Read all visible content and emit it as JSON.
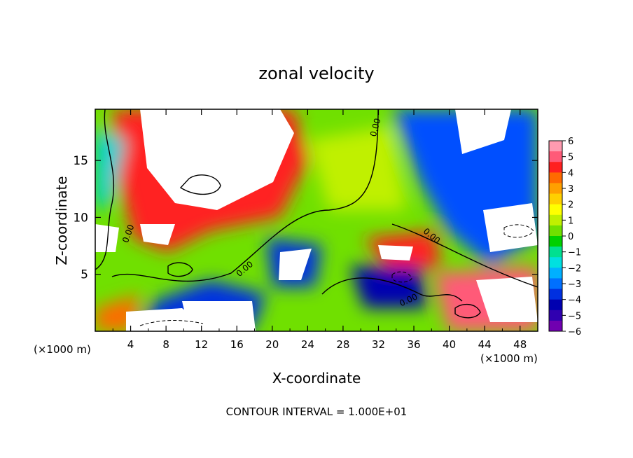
{
  "chart_data": {
    "type": "heatmap",
    "title": "zonal velocity",
    "xlabel": "X-coordinate",
    "ylabel": "Z-coordinate",
    "x_unit": "(×1000 m)",
    "x_unit_right": "(×1000 m)",
    "footer": "CONTOUR INTERVAL = 1.000E+01",
    "xlim": [
      0,
      50
    ],
    "ylim": [
      0,
      19.5
    ],
    "xticks": [
      "4",
      "8",
      "12",
      "16",
      "20",
      "24",
      "28",
      "32",
      "36",
      "40",
      "44",
      "48"
    ],
    "yticks": [
      "5",
      "10",
      "15"
    ],
    "contour_label": "0.00",
    "colorbar": {
      "range": [
        -6,
        6
      ],
      "labels": [
        "6",
        "5",
        "4",
        "3",
        "2",
        "1",
        "0",
        "−1",
        "−2",
        "−3",
        "−4",
        "−5",
        "−6"
      ],
      "colors": [
        "#ff9bb0",
        "#ff5a78",
        "#ff2020",
        "#ff6a00",
        "#ffa000",
        "#ffd000",
        "#ffff00",
        "#c0f000",
        "#70e000",
        "#00d000",
        "#00e090",
        "#00e0e0",
        "#00b0ff",
        "#0070ff",
        "#0030e0",
        "#0000b0",
        "#3000b0",
        "#7000b0"
      ]
    },
    "colors": {
      "extreme_positive": "#ffffff",
      "extreme_negative": "#ffffff"
    },
    "features": [
      {
        "kind": "positive_max",
        "x": 13,
        "z": 16.5
      },
      {
        "kind": "positive",
        "x": 21,
        "z": 17
      },
      {
        "kind": "negative_max",
        "x": 43,
        "z": 18
      },
      {
        "kind": "negative",
        "x": 46,
        "z": 8.5
      },
      {
        "kind": "positive",
        "x": 1,
        "z": 8
      },
      {
        "kind": "negative",
        "x": 21.5,
        "z": 6.5
      },
      {
        "kind": "positive",
        "x": 33,
        "z": 6.5
      },
      {
        "kind": "negative",
        "x": 33.5,
        "z": 5
      },
      {
        "kind": "positive",
        "x": 45,
        "z": 3
      },
      {
        "kind": "negative",
        "x": 13,
        "z": 2
      }
    ]
  }
}
